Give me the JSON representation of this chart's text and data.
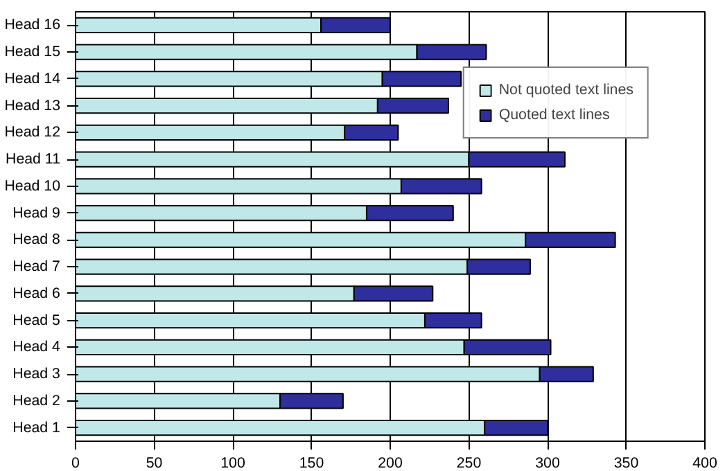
{
  "chart_data": {
    "type": "bar",
    "orientation": "horizontal",
    "stacked": true,
    "categories": [
      "Head 16",
      "Head 15",
      "Head 14",
      "Head 13",
      "Head 12",
      "Head 11",
      "Head 10",
      "Head 9",
      "Head 8",
      "Head 7",
      "Head 6",
      "Head 5",
      "Head 4",
      "Head 3",
      "Head 2",
      "Head 1"
    ],
    "series": [
      {
        "name": "Not quoted text lines",
        "color": "#c0e8e8",
        "values": [
          156,
          217,
          195,
          192,
          171,
          250,
          207,
          185,
          286,
          249,
          177,
          222,
          247,
          295,
          130,
          260
        ]
      },
      {
        "name": "Quoted text lines",
        "color": "#2e2e9c",
        "values": [
          44,
          44,
          50,
          45,
          34,
          61,
          51,
          55,
          57,
          40,
          50,
          36,
          55,
          34,
          40,
          40
        ]
      }
    ],
    "xlim": [
      0,
      400
    ],
    "xticks": [
      0,
      50,
      100,
      150,
      200,
      250,
      300,
      350,
      400
    ],
    "grid": "x",
    "legend": "top right"
  }
}
